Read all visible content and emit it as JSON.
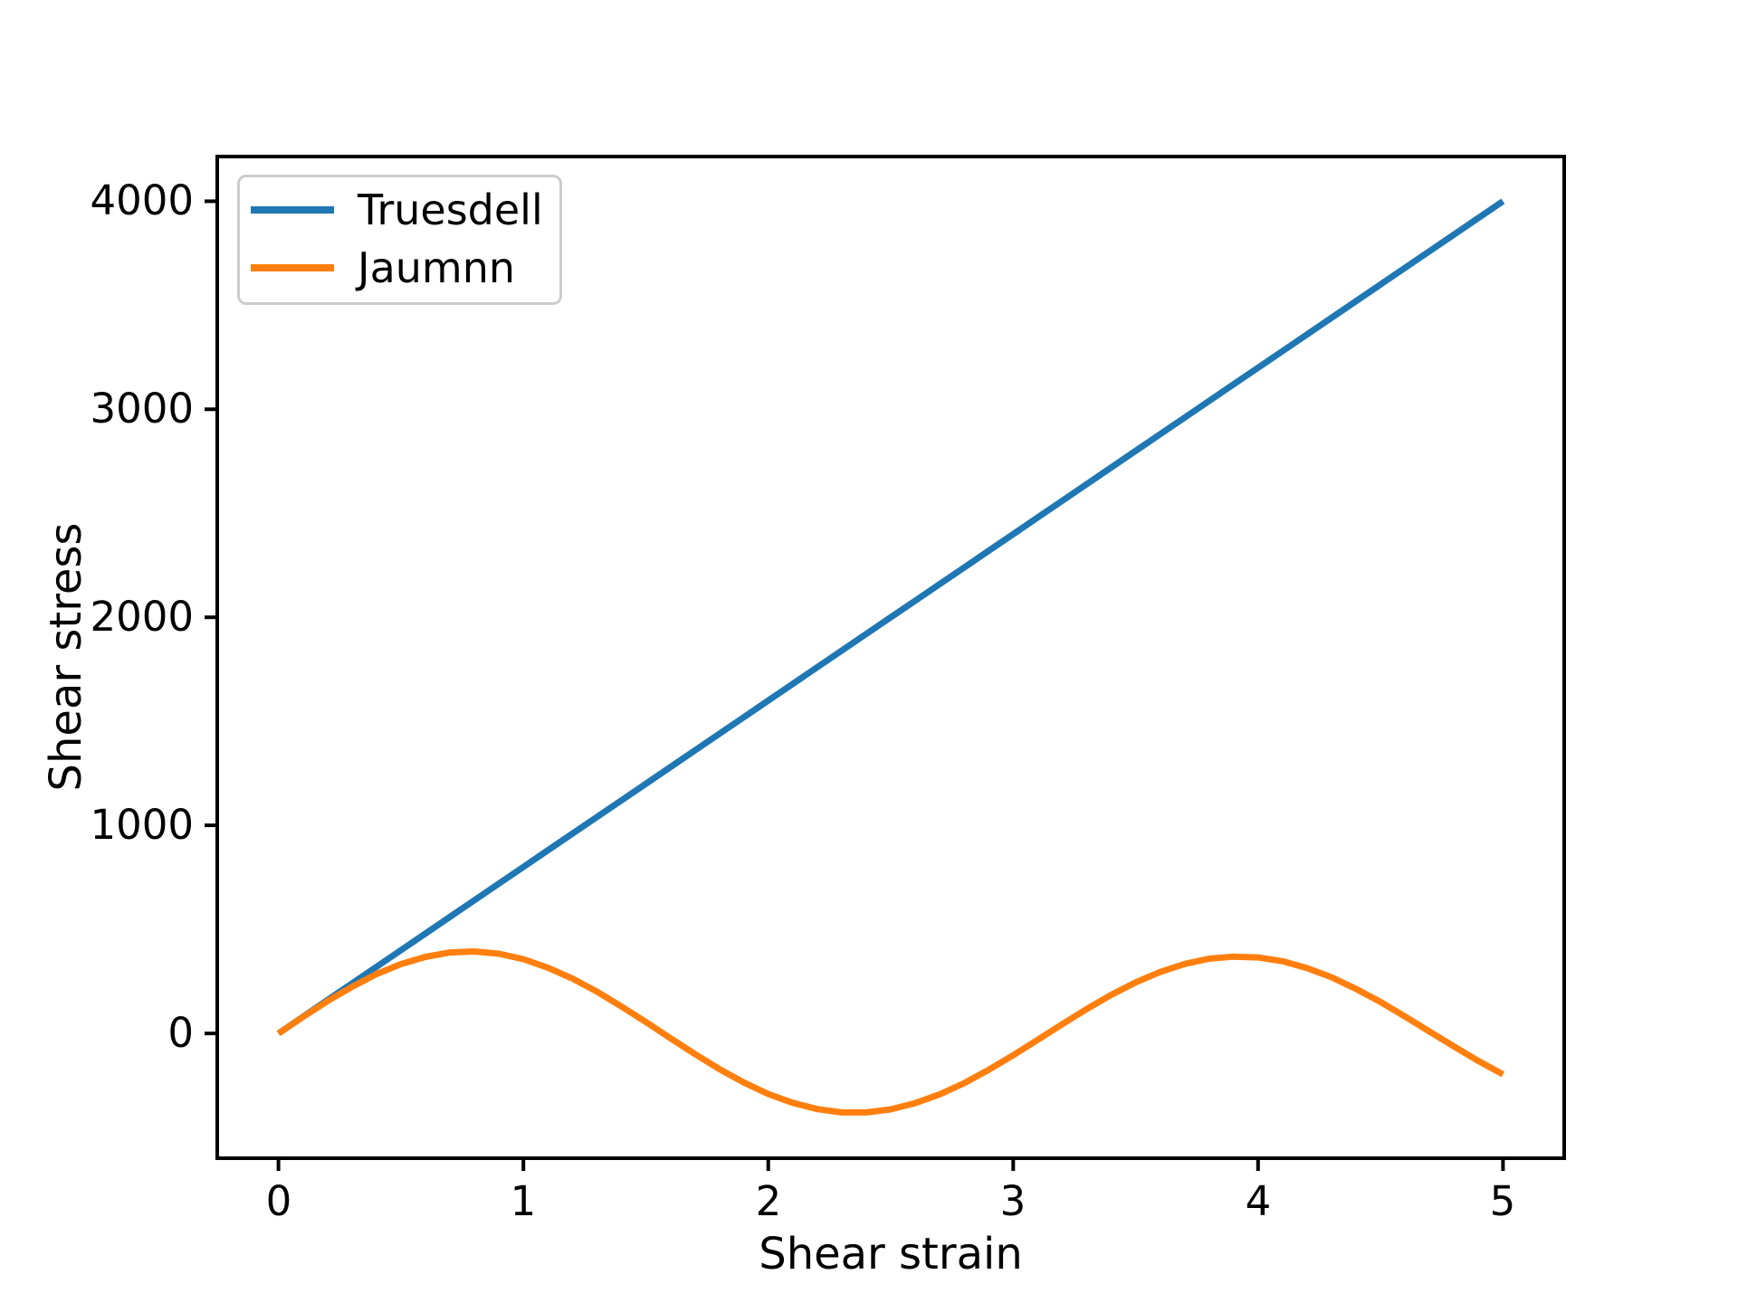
{
  "figure": {
    "background": "#ffffff",
    "text_color": "#000000"
  },
  "chart_data": {
    "type": "line",
    "title": "",
    "xlabel": "Shear strain",
    "ylabel": "Shear stress",
    "xlim": [
      -0.25,
      5.25
    ],
    "ylim": [
      -600,
      4215
    ],
    "xticks": [
      0,
      1,
      2,
      3,
      4,
      5
    ],
    "yticks": [
      0,
      1000,
      2000,
      3000,
      4000
    ],
    "grid": false,
    "legend_position": "upper left",
    "x": [
      0,
      0.1,
      0.2,
      0.3,
      0.4,
      0.5,
      0.6,
      0.7,
      0.8,
      0.9,
      1,
      1.1,
      1.2,
      1.3,
      1.4,
      1.5,
      1.6,
      1.7,
      1.8,
      1.9,
      2,
      2.1,
      2.2,
      2.3,
      2.4,
      2.5,
      2.6,
      2.7,
      2.8,
      2.9,
      3,
      3.1,
      3.2,
      3.3,
      3.4,
      3.5,
      3.6,
      3.7,
      3.8,
      3.9,
      4,
      4.1,
      4.2,
      4.3,
      4.4,
      4.5,
      4.6,
      4.7,
      4.8,
      4.9,
      5
    ],
    "series": [
      {
        "name": "Truesdell",
        "color": "#1f77b4",
        "values": [
          0,
          80,
          160,
          240,
          320,
          400,
          480,
          560,
          640,
          720,
          800,
          880,
          960,
          1040,
          1120,
          1200,
          1280,
          1360,
          1440,
          1520,
          1600,
          1680,
          1760,
          1840,
          1920,
          2000,
          2080,
          2160,
          2240,
          2320,
          2400,
          2480,
          2560,
          2640,
          2720,
          2800,
          2880,
          2960,
          3040,
          3120,
          3200,
          3280,
          3360,
          3440,
          3520,
          3600,
          3680,
          3760,
          3840,
          3920,
          4000
        ]
      },
      {
        "name": "Jaumnn",
        "color": "#ff7f0e",
        "values": [
          0,
          79,
          155,
          224,
          285,
          333,
          368,
          389,
          394,
          383,
          357,
          316,
          264,
          201,
          130,
          55,
          -23,
          -99,
          -171,
          -236,
          -291,
          -334,
          -364,
          -380,
          -380,
          -365,
          -335,
          -293,
          -239,
          -175,
          -105,
          -31,
          44,
          117,
          185,
          245,
          295,
          334,
          359,
          369,
          365,
          347,
          314,
          270,
          214,
          151,
          81,
          9,
          -63,
          -133,
          -197
        ]
      }
    ]
  }
}
